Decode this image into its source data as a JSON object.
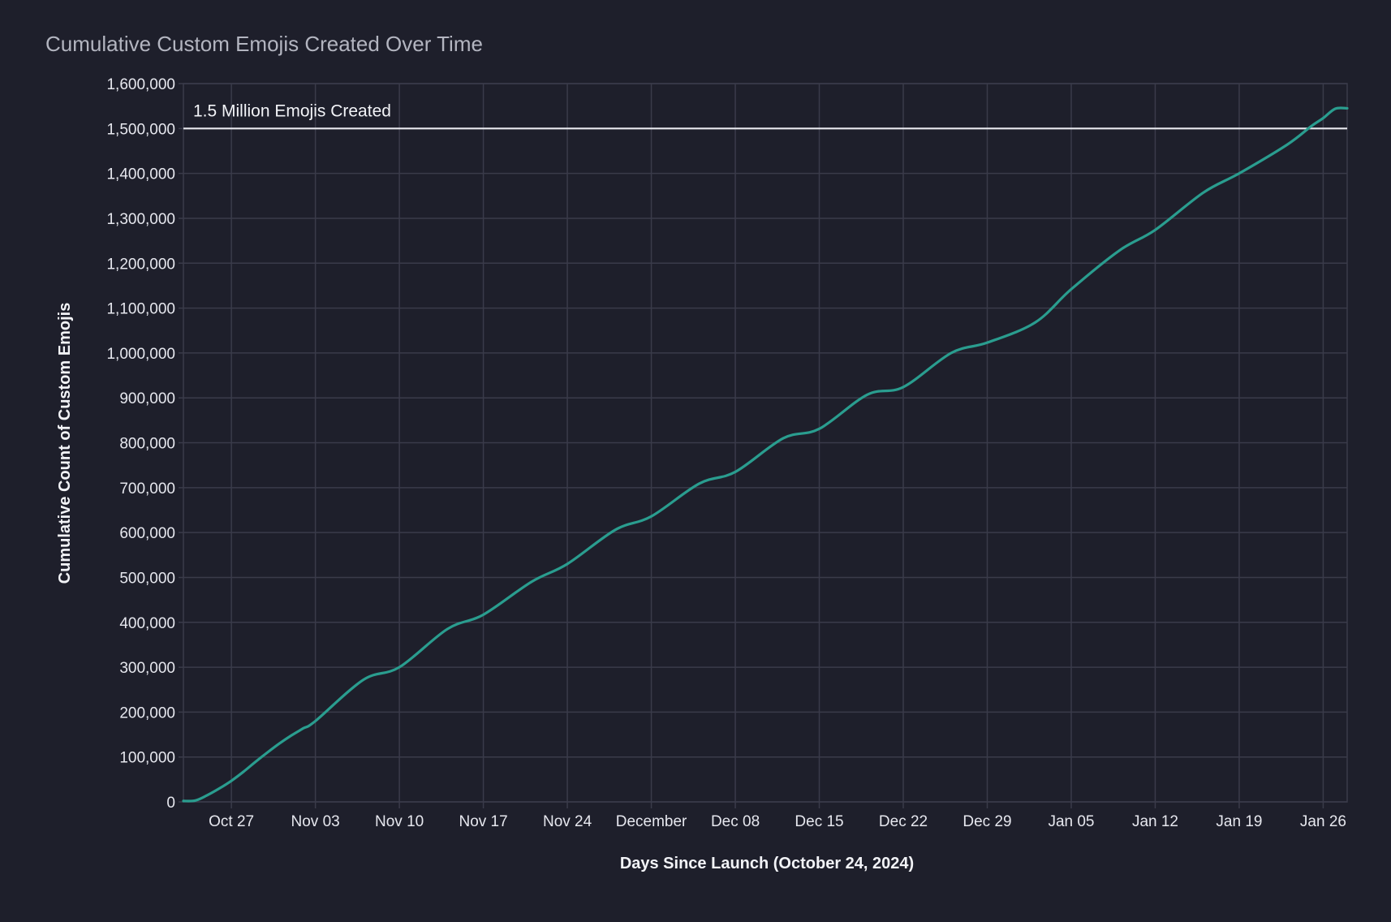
{
  "chart_data": {
    "type": "line",
    "title": "Cumulative Custom Emojis Created Over Time",
    "xlabel": "Days Since Launch (October 24, 2024)",
    "ylabel": "Cumulative Count of Custom Emojis",
    "xlim": [
      "2024-10-23",
      "2025-01-28"
    ],
    "ylim": [
      0,
      1600000
    ],
    "grid": true,
    "legend": "none",
    "x_ticks": [
      {
        "date": "2024-10-27",
        "label": "Oct 27"
      },
      {
        "date": "2024-11-03",
        "label": "Nov 03"
      },
      {
        "date": "2024-11-10",
        "label": "Nov 10"
      },
      {
        "date": "2024-11-17",
        "label": "Nov 17"
      },
      {
        "date": "2024-11-24",
        "label": "Nov 24"
      },
      {
        "date": "2024-12-01",
        "label": "December"
      },
      {
        "date": "2024-12-08",
        "label": "Dec 08"
      },
      {
        "date": "2024-12-15",
        "label": "Dec 15"
      },
      {
        "date": "2024-12-22",
        "label": "Dec 22"
      },
      {
        "date": "2024-12-29",
        "label": "Dec 29"
      },
      {
        "date": "2025-01-05",
        "label": "Jan 05"
      },
      {
        "date": "2025-01-12",
        "label": "Jan 12"
      },
      {
        "date": "2025-01-19",
        "label": "Jan 19"
      },
      {
        "date": "2025-01-26",
        "label": "Jan 26"
      }
    ],
    "y_ticks": [
      {
        "value": 0,
        "label": "0"
      },
      {
        "value": 100000,
        "label": "100,000"
      },
      {
        "value": 200000,
        "label": "200,000"
      },
      {
        "value": 300000,
        "label": "300,000"
      },
      {
        "value": 400000,
        "label": "400,000"
      },
      {
        "value": 500000,
        "label": "500,000"
      },
      {
        "value": 600000,
        "label": "600,000"
      },
      {
        "value": 700000,
        "label": "700,000"
      },
      {
        "value": 800000,
        "label": "800,000"
      },
      {
        "value": 900000,
        "label": "900,000"
      },
      {
        "value": 1000000,
        "label": "1,000,000"
      },
      {
        "value": 1100000,
        "label": "1,100,000"
      },
      {
        "value": 1200000,
        "label": "1,200,000"
      },
      {
        "value": 1300000,
        "label": "1,300,000"
      },
      {
        "value": 1400000,
        "label": "1,400,000"
      },
      {
        "value": 1500000,
        "label": "1,500,000"
      },
      {
        "value": 1600000,
        "label": "1,600,000"
      }
    ],
    "reference_line": {
      "value": 1500000,
      "label": "1.5 Million Emojis Created",
      "color": "#e8e8ee"
    },
    "series": [
      {
        "color": "#2a9d8f",
        "x": [
          "2024-10-23",
          "2024-10-24",
          "2024-10-25",
          "2024-10-26",
          "2024-10-27",
          "2024-10-28",
          "2024-10-29",
          "2024-10-30",
          "2024-10-31",
          "2024-11-01",
          "2024-11-02",
          "2024-11-03",
          "2024-11-07",
          "2024-11-10",
          "2024-11-14",
          "2024-11-17",
          "2024-11-21",
          "2024-11-24",
          "2024-11-28",
          "2024-12-01",
          "2024-12-05",
          "2024-12-08",
          "2024-12-12",
          "2024-12-15",
          "2024-12-19",
          "2024-12-22",
          "2024-12-26",
          "2024-12-29",
          "2025-01-02",
          "2025-01-05",
          "2025-01-09",
          "2025-01-12",
          "2025-01-16",
          "2025-01-19",
          "2025-01-23",
          "2025-01-25",
          "2025-01-26",
          "2025-01-27",
          "2025-01-28"
        ],
        "y": [
          2000,
          3000,
          15000,
          30000,
          47000,
          67000,
          89000,
          110000,
          130000,
          148000,
          164000,
          180000,
          272000,
          300000,
          385000,
          417000,
          490000,
          530000,
          606000,
          636000,
          709000,
          735000,
          810000,
          831000,
          907000,
          924000,
          1000000,
          1023000,
          1068000,
          1142000,
          1228000,
          1274000,
          1357000,
          1400000,
          1464000,
          1505000,
          1523000,
          1544000,
          1545000
        ]
      }
    ]
  }
}
